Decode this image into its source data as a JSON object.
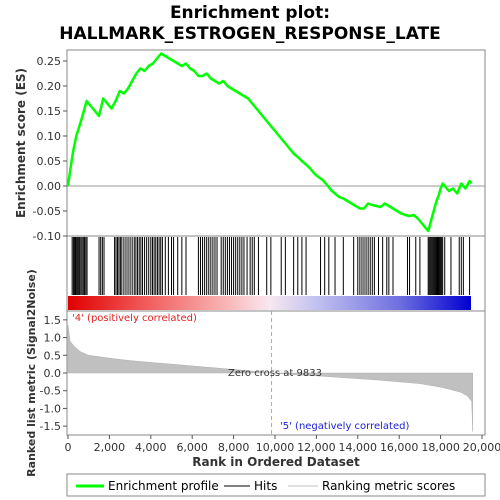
{
  "chart_data": {
    "type": "line",
    "title": "Enrichment plot:",
    "subtitle": "HALLMARK_ESTROGEN_RESPONSE_LATE",
    "xlabel": "Rank in Ordered Dataset",
    "ylabel_top": "Enrichment score (ES)",
    "ylabel_bottom": "Ranked list metric (Signal2Noise)",
    "xlim": [
      0,
      20000
    ],
    "ylim_es": [
      -0.1,
      0.27
    ],
    "ylim_metric": [
      -1.75,
      1.75
    ],
    "x_ticks": [
      0,
      2000,
      4000,
      6000,
      8000,
      10000,
      12000,
      14000,
      16000,
      18000,
      20000
    ],
    "x_tick_labels": [
      "0",
      "2,000",
      "4,000",
      "6,000",
      "8,000",
      "10,000",
      "12,000",
      "14,000",
      "16,000",
      "18,000",
      "20,000"
    ],
    "es_ticks": [
      0.25,
      0.2,
      0.15,
      0.1,
      0.05,
      0.0,
      -0.05,
      -0.1
    ],
    "es_tick_labels": [
      "0.25",
      "0.20",
      "0.15",
      "0.10",
      "0.05",
      "0.00",
      "-0.05",
      "-0.10"
    ],
    "metric_ticks": [
      1.5,
      1.0,
      0.5,
      0.0,
      -0.5,
      -1.0,
      -1.5
    ],
    "metric_tick_labels": [
      "1.5",
      "1.0",
      "0.5",
      "0.0",
      "-0.5",
      "-1.0",
      "-1.5"
    ],
    "series": [
      {
        "name": "Enrichment profile",
        "color": "#00ff00",
        "x": [
          0,
          100,
          250,
          400,
          550,
          700,
          900,
          1100,
          1300,
          1500,
          1700,
          1900,
          2100,
          2300,
          2500,
          2700,
          2900,
          3100,
          3300,
          3500,
          3700,
          3900,
          4100,
          4300,
          4500,
          4700,
          4900,
          5100,
          5300,
          5500,
          5700,
          5900,
          6100,
          6300,
          6500,
          6700,
          6900,
          7100,
          7300,
          7500,
          7700,
          7900,
          8100,
          8300,
          8500,
          8700,
          8900,
          9100,
          9300,
          9500,
          9700,
          9900,
          10100,
          10300,
          10500,
          10700,
          10900,
          11100,
          11300,
          11500,
          11700,
          11900,
          12100,
          12300,
          12500,
          12700,
          12900,
          13100,
          13300,
          13500,
          13700,
          13900,
          14100,
          14300,
          14500,
          14700,
          14900,
          15100,
          15300,
          15500,
          15700,
          15900,
          16100,
          16300,
          16500,
          16700,
          16900,
          17100,
          17300,
          17400,
          17500,
          17600,
          17700,
          17800,
          17900,
          18000,
          18100,
          18200,
          18400,
          18600,
          18800,
          19000,
          19200,
          19400,
          19500
        ],
        "values": [
          0.0,
          0.03,
          0.07,
          0.1,
          0.12,
          0.14,
          0.17,
          0.16,
          0.15,
          0.14,
          0.175,
          0.165,
          0.155,
          0.17,
          0.19,
          0.185,
          0.195,
          0.21,
          0.225,
          0.235,
          0.23,
          0.24,
          0.245,
          0.255,
          0.265,
          0.26,
          0.255,
          0.25,
          0.245,
          0.24,
          0.245,
          0.235,
          0.23,
          0.22,
          0.22,
          0.225,
          0.215,
          0.21,
          0.205,
          0.21,
          0.2,
          0.195,
          0.19,
          0.185,
          0.18,
          0.175,
          0.165,
          0.155,
          0.145,
          0.135,
          0.125,
          0.115,
          0.105,
          0.095,
          0.085,
          0.075,
          0.065,
          0.058,
          0.05,
          0.043,
          0.035,
          0.025,
          0.018,
          0.012,
          0.003,
          -0.008,
          -0.015,
          -0.022,
          -0.025,
          -0.03,
          -0.035,
          -0.04,
          -0.045,
          -0.045,
          -0.035,
          -0.038,
          -0.04,
          -0.042,
          -0.035,
          -0.04,
          -0.045,
          -0.05,
          -0.055,
          -0.058,
          -0.06,
          -0.058,
          -0.065,
          -0.075,
          -0.085,
          -0.09,
          -0.075,
          -0.06,
          -0.045,
          -0.03,
          -0.02,
          -0.005,
          0.005,
          0.0,
          -0.01,
          -0.005,
          -0.015,
          0.005,
          -0.005,
          0.01,
          0.005
        ]
      }
    ],
    "hits_x": [
      200,
      260,
      310,
      360,
      400,
      450,
      500,
      560,
      620,
      680,
      740,
      800,
      860,
      920,
      1500,
      1580,
      1660,
      1740,
      2250,
      2320,
      2390,
      2460,
      2530,
      2600,
      2700,
      2800,
      2900,
      3000,
      3100,
      3200,
      3280,
      3360,
      3440,
      3520,
      3600,
      3700,
      3800,
      3900,
      4000,
      4080,
      4160,
      4240,
      4320,
      4400,
      4480,
      4560,
      4700,
      4850,
      5000,
      5100,
      5300,
      5500,
      5700,
      6300,
      6400,
      6500,
      6600,
      6700,
      6800,
      6900,
      7000,
      7100,
      7200,
      7400,
      7500,
      7600,
      7700,
      7800,
      7900,
      8000,
      8100,
      8200,
      8300,
      8400,
      8500,
      8650,
      8800,
      8900,
      9000,
      9200,
      9600,
      9800,
      10300,
      10500,
      10900,
      11100,
      11300,
      11500,
      12200,
      12400,
      12600,
      12900,
      13300,
      13800,
      14000,
      14100,
      14200,
      14300,
      14400,
      14500,
      14600,
      14700,
      14800,
      15000,
      15200,
      15400,
      15500,
      15700,
      16400,
      16500,
      16800,
      17000,
      17400,
      17450,
      17500,
      17550,
      17600,
      17650,
      17700,
      17750,
      17800,
      17850,
      17900,
      17950,
      18000,
      18050,
      18100,
      18200,
      18500,
      18900,
      19000,
      19100,
      19400
    ],
    "metric_profile_x": [
      0,
      100,
      300,
      600,
      1000,
      2000,
      3000,
      4000,
      5000,
      6000,
      7000,
      8000,
      9000,
      9833,
      11000,
      12000,
      13000,
      14000,
      15000,
      16000,
      17000,
      17500,
      18000,
      18500,
      19000,
      19300,
      19500,
      19550
    ],
    "metric_profile_y": [
      1.35,
      0.9,
      0.75,
      0.6,
      0.5,
      0.42,
      0.35,
      0.3,
      0.25,
      0.2,
      0.15,
      0.1,
      0.05,
      0.0,
      -0.05,
      -0.08,
      -0.12,
      -0.16,
      -0.2,
      -0.25,
      -0.3,
      -0.35,
      -0.4,
      -0.47,
      -0.55,
      -0.65,
      -0.8,
      -1.65
    ],
    "zero_cross_label": "Zero cross at 9833",
    "positive_label": "'4' (positively correlated)",
    "negative_label": "'5' (negatively correlated)",
    "legend": [
      {
        "label": "Enrichment profile",
        "color": "#00ff00"
      },
      {
        "label": "Hits",
        "color": "#000000"
      },
      {
        "label": "Ranking metric scores",
        "color": "#c0c0c0"
      }
    ],
    "legend_placement": "bottom"
  }
}
